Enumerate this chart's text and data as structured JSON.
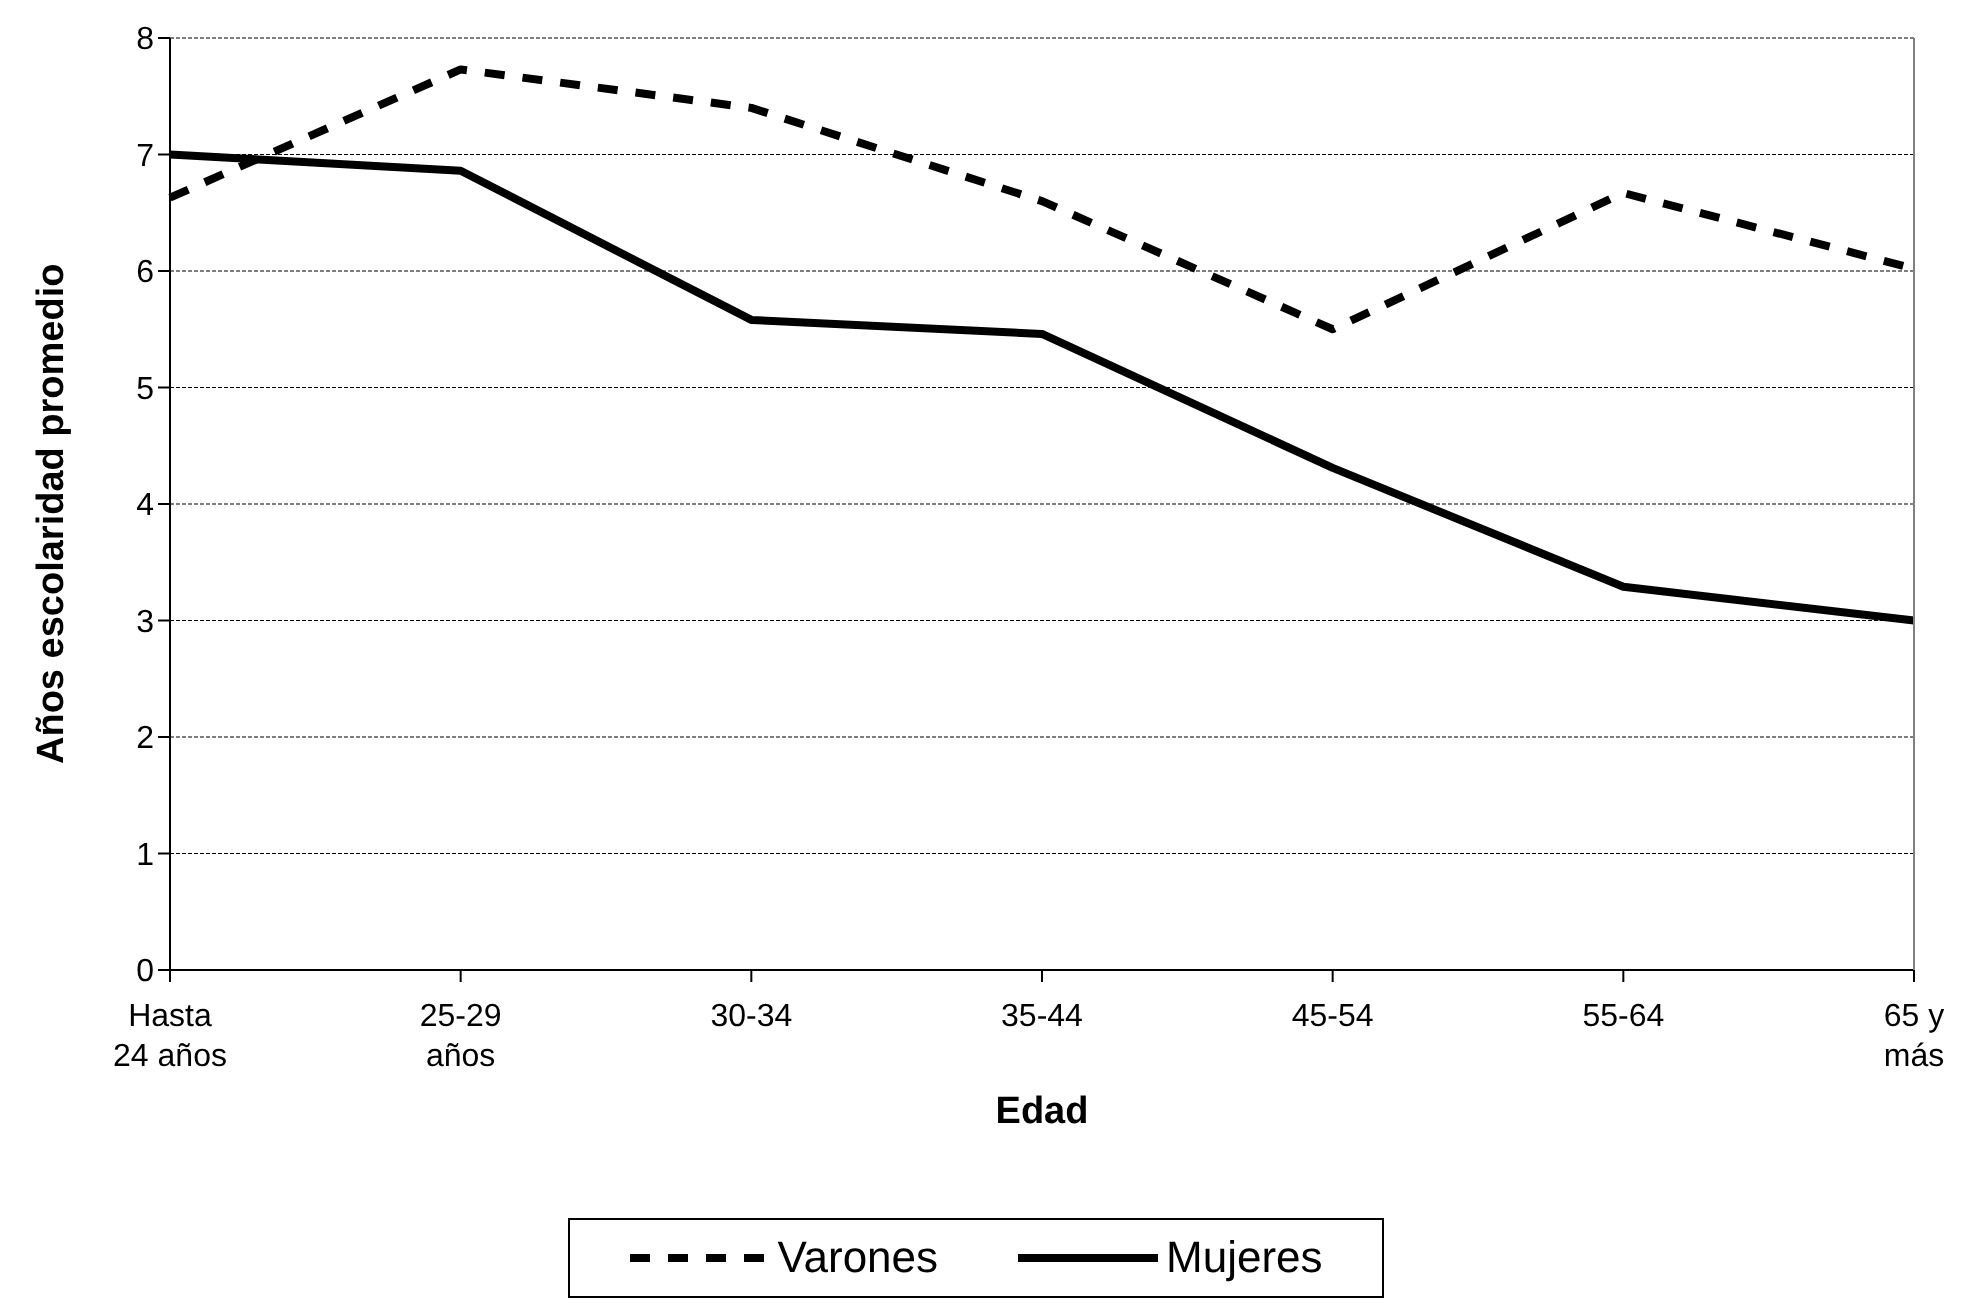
{
  "chart_data": {
    "type": "line",
    "xlabel": "Edad",
    "ylabel": "Años escolaridad promedio",
    "categories": [
      "Hasta 24 años",
      "25-29 años",
      "30-34",
      "35-44",
      "45-54",
      "55-64",
      "65 y más"
    ],
    "series": [
      {
        "name": "Varones",
        "color": "#000000",
        "line_style": "dashed",
        "values": [
          6.63,
          7.73,
          7.4,
          6.6,
          5.5,
          6.67,
          6.02
        ]
      },
      {
        "name": "Mujeres",
        "color": "#000000",
        "line_style": "solid",
        "values": [
          7.0,
          6.86,
          5.58,
          5.46,
          4.31,
          3.29,
          3.0
        ]
      }
    ],
    "ylim": [
      0,
      8
    ],
    "yticks": [
      0,
      1,
      2,
      3,
      4,
      5,
      6,
      7,
      8
    ],
    "grid": "y",
    "legend": "bottom",
    "marker": "none"
  }
}
